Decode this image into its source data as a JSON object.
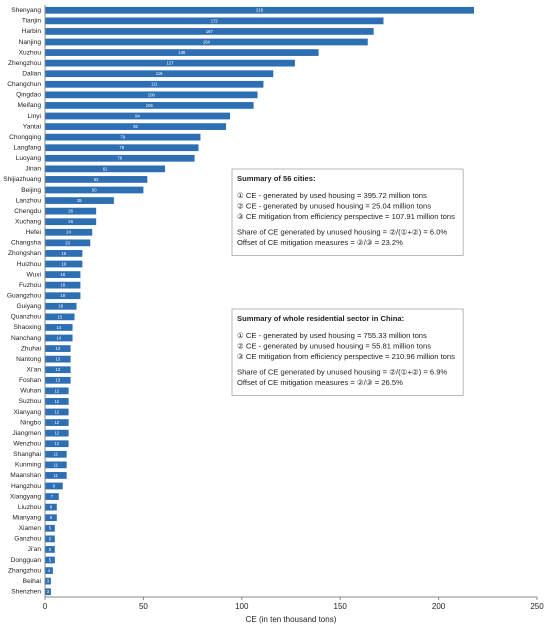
{
  "chart_data": {
    "type": "bar",
    "orientation": "horizontal",
    "x_label": "CE (in ten thousand tons)",
    "color": "#2e6fb4",
    "categories": [
      "Shenyang",
      "Tianjin",
      "Harbin",
      "Nanjing",
      "Xuzhou",
      "Zhengzhou",
      "Dalian",
      "Changchun",
      "Qingdao",
      "Meifang",
      "Linyi",
      "Yantai",
      "Chongqing",
      "Langfang",
      "Luoyang",
      "Jinan",
      "Shijiazhuang",
      "Beijing",
      "Lanzhou",
      "Chengdu",
      "Xuchang",
      "Hefei",
      "Changsha",
      "Zhongshan",
      "Huizhou",
      "Wuxi",
      "Fuzhou",
      "Guangzhou",
      "Guiyang",
      "Quanzhou",
      "Shaoxing",
      "Nanchang",
      "Zhuhai",
      "Nantong",
      "Xi'an",
      "Foshan",
      "Wuhan",
      "Suzhou",
      "Xianyang",
      "Ningbo",
      "Jiangmen",
      "Wenzhou",
      "Shanghai",
      "Kunming",
      "Maanshan",
      "Hangzhou",
      "Xiangyang",
      "Liuzhou",
      "Mianyang",
      "Xiamen",
      "Ganzhou",
      "Ji'an",
      "Dongguan",
      "Zhangzhou",
      "Beihai",
      "Shenzhen"
    ],
    "values": [
      218,
      172,
      167,
      164,
      139,
      127,
      116,
      111,
      108,
      106,
      94,
      92,
      79,
      78,
      76,
      61,
      52,
      50,
      35,
      26,
      26,
      24,
      23,
      19,
      19,
      18,
      18,
      18,
      16,
      15,
      14,
      14,
      13,
      13,
      13,
      13,
      12,
      12,
      12,
      12,
      12,
      12,
      11,
      11,
      11,
      9,
      7,
      6,
      6,
      5,
      5,
      5,
      5,
      4,
      3,
      3
    ],
    "xlim": [
      0,
      250
    ],
    "xticks": [
      0,
      50,
      100,
      150,
      200,
      250
    ],
    "annotations": [
      {
        "title": "Summary of 56 cities:",
        "lines": [
          "① CE - generated by used housing = 395.72 million tons",
          "② CE - generated by unused housing = 25.04 million tons",
          "③ CE mitigation from efficiency perspective = 107.91 million tons"
        ],
        "notes": [
          "Share of CE generated by unused housing = ②/(①+②) = 6.0%",
          "Offset of CE mitigation measures = ②/③ = 23.2%"
        ]
      },
      {
        "title": "Summary of whole residential sector in China:",
        "lines": [
          "① CE - generated by used housing = 755.33 million tons",
          "② CE - generated by unused housing = 55.81 million tons",
          "③ CE mitigation from efficiency perspective = 210.96 million tons"
        ],
        "notes": [
          "Share of CE generated by unused housing = ②/(①+②) = 6.9%",
          "Offset of CE mitigation measures = ②/③ = 26.5%"
        ]
      }
    ]
  }
}
